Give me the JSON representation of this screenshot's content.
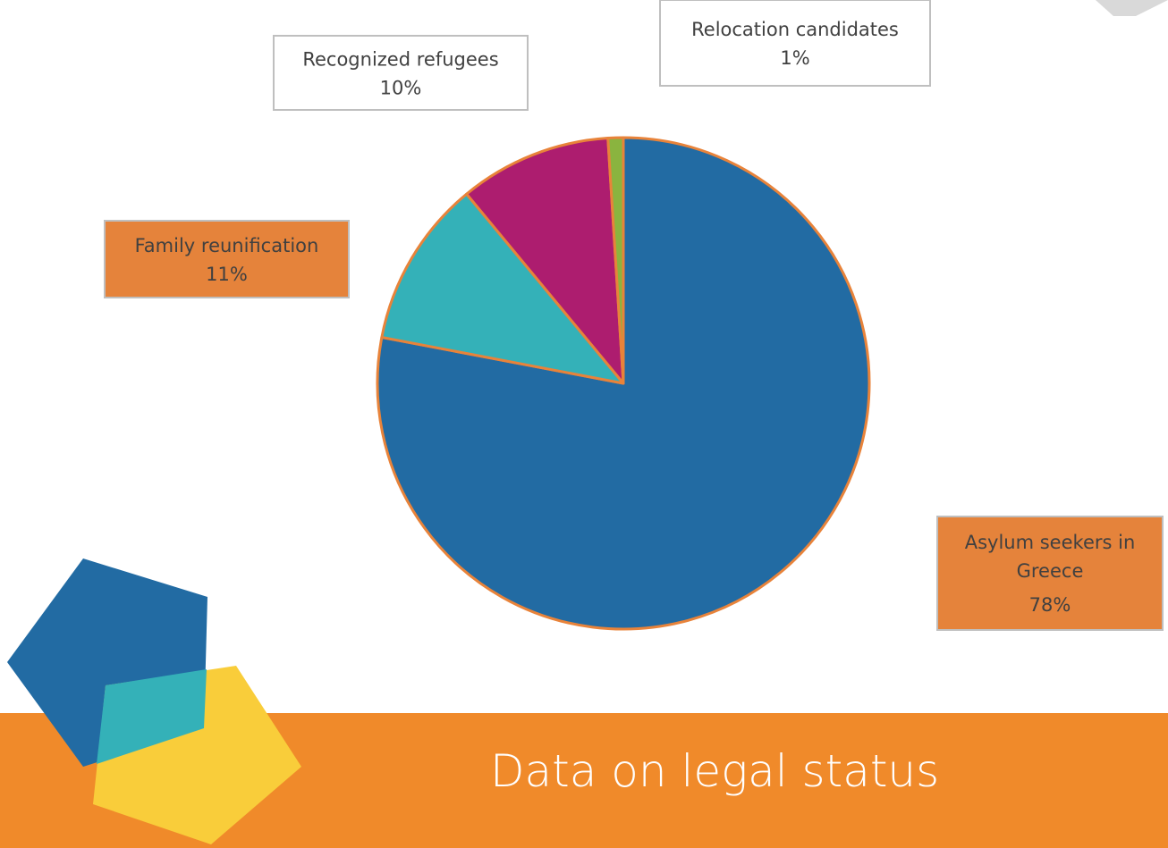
{
  "chart_data": {
    "type": "pie",
    "title": "Data on legal status",
    "categories": [
      "Asylum seekers in Greece",
      "Family reunification",
      "Recognized refugees",
      "Relocation candidates"
    ],
    "values": [
      78,
      11,
      10,
      1
    ],
    "value_labels": [
      "78%",
      "11%",
      "10%",
      "1%"
    ],
    "colors": [
      "#226ba3",
      "#34b1b8",
      "#ad1d6f",
      "#8ab43f"
    ]
  }
}
